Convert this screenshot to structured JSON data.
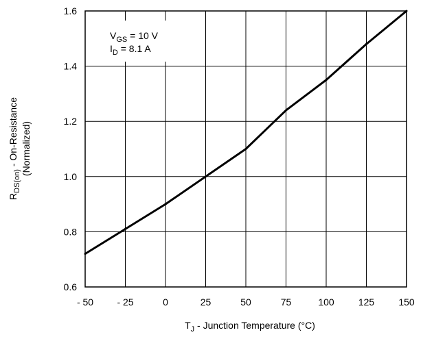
{
  "chart_data": {
    "type": "line",
    "xlim": [
      -50,
      150
    ],
    "ylim": [
      0.6,
      1.6
    ],
    "grid": true,
    "x_ticks": [
      "- 50",
      "- 25",
      "0",
      "25",
      "50",
      "75",
      "100",
      "125",
      "150"
    ],
    "x_tick_values": [
      -50,
      -25,
      0,
      25,
      50,
      75,
      100,
      125,
      150
    ],
    "y_ticks": [
      "0.6",
      "0.8",
      "1.0",
      "1.2",
      "1.4",
      "1.6"
    ],
    "y_tick_values": [
      0.6,
      0.8,
      1.0,
      1.2,
      1.4,
      1.6
    ],
    "xlabel": {
      "main": "T",
      "sub": "J",
      "rest": " - Junction Temperature (°C)"
    },
    "ylabel": {
      "line1_main": "R",
      "line1_sub": "DS(on)",
      "line1_rest": " - On-Resistance",
      "line2": "(Normalized)"
    },
    "annotation": {
      "line1_main": "V",
      "line1_sub": "GS",
      "line1_rest": " = 10 V",
      "line2_main": "I",
      "line2_sub": "D",
      "line2_rest": " = 8.1 A"
    },
    "series": [
      {
        "x": [
          -50,
          -25,
          0,
          25,
          50,
          75,
          100,
          125,
          150
        ],
        "values": [
          0.72,
          0.81,
          0.9,
          1.0,
          1.1,
          1.24,
          1.35,
          1.48,
          1.61
        ]
      }
    ]
  }
}
